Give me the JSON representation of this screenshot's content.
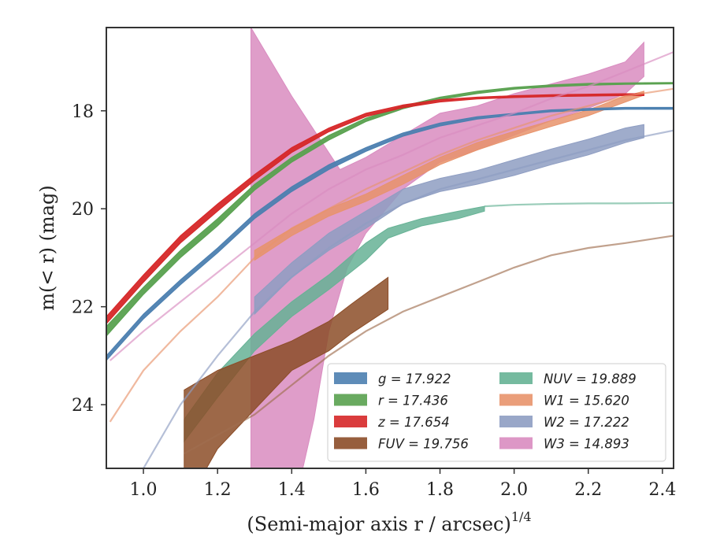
{
  "chart_data": {
    "type": "area",
    "xlabel": "(Semi-major axis r / arcsec)",
    "xlabel_exponent": "1/4",
    "ylabel": "m(< r) (mag)",
    "xlim": [
      0.9,
      2.43
    ],
    "ylim": [
      25.3,
      16.3
    ],
    "y_inverted": true,
    "grid": false,
    "legend_placement": "lower-right",
    "legend_columns": 2,
    "xticks": [
      {
        "value": 1.0,
        "label": "1.0"
      },
      {
        "value": 1.2,
        "label": "1.2"
      },
      {
        "value": 1.4,
        "label": "1.4"
      },
      {
        "value": 1.6,
        "label": "1.6"
      },
      {
        "value": 1.8,
        "label": "1.8"
      },
      {
        "value": 2.0,
        "label": "2.0"
      },
      {
        "value": 2.2,
        "label": "2.2"
      },
      {
        "value": 2.4,
        "label": "2.4"
      }
    ],
    "yticks": [
      {
        "value": 18,
        "label": "18"
      },
      {
        "value": 20,
        "label": "20"
      },
      {
        "value": 22,
        "label": "22"
      },
      {
        "value": 24,
        "label": "24"
      }
    ],
    "legend_order": [
      "g",
      "r",
      "z",
      "FUV",
      "NUV",
      "W1",
      "W2",
      "W3"
    ],
    "series": [
      {
        "name": "g",
        "legend_label": "g = 17.922",
        "color": "#4c7fb0",
        "band_lower": [
          [
            0.9,
            23.0
          ],
          [
            1.0,
            22.15
          ],
          [
            1.1,
            21.45
          ],
          [
            1.2,
            20.8
          ],
          [
            1.3,
            20.1
          ],
          [
            1.4,
            19.55
          ],
          [
            1.5,
            19.1
          ],
          [
            1.6,
            18.75
          ],
          [
            1.7,
            18.45
          ],
          [
            1.8,
            18.25
          ],
          [
            1.9,
            18.12
          ],
          [
            2.0,
            18.05
          ],
          [
            2.1,
            17.98
          ],
          [
            2.2,
            17.95
          ],
          [
            2.3,
            17.93
          ],
          [
            2.43,
            17.93
          ]
        ],
        "band_upper": [
          [
            0.9,
            23.1
          ],
          [
            1.0,
            22.25
          ],
          [
            1.1,
            21.55
          ],
          [
            1.2,
            20.9
          ],
          [
            1.3,
            20.2
          ],
          [
            1.4,
            19.65
          ],
          [
            1.5,
            19.2
          ],
          [
            1.6,
            18.83
          ],
          [
            1.7,
            18.52
          ],
          [
            1.8,
            18.31
          ],
          [
            1.9,
            18.17
          ],
          [
            2.0,
            18.09
          ],
          [
            2.1,
            18.02
          ],
          [
            2.2,
            17.99
          ],
          [
            2.3,
            17.97
          ],
          [
            2.43,
            17.97
          ]
        ]
      },
      {
        "name": "r",
        "legend_label": "r = 17.436",
        "color": "#59a14f",
        "band_lower": [
          [
            0.9,
            22.4
          ],
          [
            1.0,
            21.6
          ],
          [
            1.1,
            20.85
          ],
          [
            1.2,
            20.2
          ],
          [
            1.3,
            19.5
          ],
          [
            1.4,
            18.95
          ],
          [
            1.5,
            18.5
          ],
          [
            1.6,
            18.15
          ],
          [
            1.7,
            17.9
          ],
          [
            1.8,
            17.72
          ],
          [
            1.9,
            17.6
          ],
          [
            2.0,
            17.52
          ],
          [
            2.1,
            17.47
          ],
          [
            2.2,
            17.44
          ],
          [
            2.3,
            17.43
          ],
          [
            2.43,
            17.42
          ]
        ],
        "band_upper": [
          [
            0.9,
            22.6
          ],
          [
            1.0,
            21.75
          ],
          [
            1.1,
            21.0
          ],
          [
            1.2,
            20.35
          ],
          [
            1.3,
            19.62
          ],
          [
            1.4,
            19.05
          ],
          [
            1.5,
            18.6
          ],
          [
            1.6,
            18.22
          ],
          [
            1.7,
            17.96
          ],
          [
            1.8,
            17.77
          ],
          [
            1.9,
            17.65
          ],
          [
            2.0,
            17.56
          ],
          [
            2.1,
            17.51
          ],
          [
            2.2,
            17.48
          ],
          [
            2.3,
            17.46
          ],
          [
            2.43,
            17.45
          ]
        ]
      },
      {
        "name": "z",
        "legend_label": "z = 17.654",
        "color": "#d62728",
        "band_lower": [
          [
            0.9,
            22.2
          ],
          [
            1.0,
            21.35
          ],
          [
            1.1,
            20.55
          ],
          [
            1.2,
            19.9
          ],
          [
            1.3,
            19.3
          ],
          [
            1.4,
            18.75
          ],
          [
            1.5,
            18.35
          ],
          [
            1.6,
            18.05
          ],
          [
            1.7,
            17.88
          ],
          [
            1.8,
            17.77
          ],
          [
            1.9,
            17.72
          ],
          [
            2.0,
            17.69
          ],
          [
            2.1,
            17.67
          ],
          [
            2.2,
            17.66
          ],
          [
            2.3,
            17.65
          ],
          [
            2.35,
            17.65
          ]
        ],
        "band_upper": [
          [
            0.9,
            22.35
          ],
          [
            1.0,
            21.5
          ],
          [
            1.1,
            20.7
          ],
          [
            1.2,
            20.05
          ],
          [
            1.3,
            19.42
          ],
          [
            1.4,
            18.85
          ],
          [
            1.5,
            18.43
          ],
          [
            1.6,
            18.12
          ],
          [
            1.7,
            17.94
          ],
          [
            1.8,
            17.82
          ],
          [
            1.9,
            17.76
          ],
          [
            2.0,
            17.73
          ],
          [
            2.1,
            17.71
          ],
          [
            2.2,
            17.7
          ],
          [
            2.3,
            17.69
          ],
          [
            2.35,
            17.69
          ]
        ]
      },
      {
        "name": "FUV",
        "legend_label": "FUV = 19.756",
        "color": "#8c4d28",
        "band_lower": [
          [
            1.11,
            25.3
          ],
          [
            1.17,
            25.3
          ],
          [
            1.2,
            24.9
          ],
          [
            1.3,
            24.1
          ],
          [
            1.4,
            23.3
          ],
          [
            1.5,
            22.9
          ],
          [
            1.56,
            22.55
          ],
          [
            1.66,
            22.05
          ]
        ],
        "band_upper": [
          [
            1.11,
            23.7
          ],
          [
            1.2,
            23.3
          ],
          [
            1.3,
            23.0
          ],
          [
            1.4,
            22.7
          ],
          [
            1.5,
            22.3
          ],
          [
            1.56,
            21.95
          ],
          [
            1.66,
            21.4
          ]
        ]
      },
      {
        "name": "NUV",
        "legend_label": "NUV = 19.889",
        "color": "#66b295",
        "band_lower": [
          [
            1.11,
            24.75
          ],
          [
            1.2,
            23.85
          ],
          [
            1.3,
            22.9
          ],
          [
            1.4,
            22.2
          ],
          [
            1.5,
            21.65
          ],
          [
            1.6,
            21.05
          ],
          [
            1.66,
            20.6
          ],
          [
            1.75,
            20.35
          ],
          [
            1.85,
            20.2
          ],
          [
            1.92,
            20.05
          ]
        ],
        "band_upper": [
          [
            1.11,
            24.3
          ],
          [
            1.2,
            23.35
          ],
          [
            1.3,
            22.55
          ],
          [
            1.4,
            21.9
          ],
          [
            1.5,
            21.35
          ],
          [
            1.6,
            20.7
          ],
          [
            1.66,
            20.4
          ],
          [
            1.75,
            20.2
          ],
          [
            1.85,
            20.05
          ],
          [
            1.92,
            19.95
          ]
        ]
      },
      {
        "name": "W1",
        "legend_label": "W1 = 15.620",
        "color": "#e8936b",
        "band_lower": [
          [
            1.3,
            21.05
          ],
          [
            1.4,
            20.55
          ],
          [
            1.5,
            20.15
          ],
          [
            1.6,
            19.85
          ],
          [
            1.7,
            19.5
          ],
          [
            1.8,
            19.1
          ],
          [
            1.9,
            18.8
          ],
          [
            2.0,
            18.55
          ],
          [
            2.1,
            18.32
          ],
          [
            2.2,
            18.1
          ],
          [
            2.3,
            17.82
          ],
          [
            2.35,
            17.68
          ]
        ],
        "band_upper": [
          [
            1.3,
            20.85
          ],
          [
            1.4,
            20.4
          ],
          [
            1.5,
            20.0
          ],
          [
            1.6,
            19.7
          ],
          [
            1.7,
            19.32
          ],
          [
            1.8,
            18.95
          ],
          [
            1.9,
            18.65
          ],
          [
            2.0,
            18.42
          ],
          [
            2.1,
            18.2
          ],
          [
            2.2,
            17.98
          ],
          [
            2.3,
            17.7
          ],
          [
            2.35,
            17.6
          ]
        ]
      },
      {
        "name": "W2",
        "legend_label": "W2 = 17.222",
        "color": "#8e9dc2",
        "band_lower": [
          [
            1.3,
            22.15
          ],
          [
            1.4,
            21.4
          ],
          [
            1.5,
            20.85
          ],
          [
            1.6,
            20.4
          ],
          [
            1.7,
            19.9
          ],
          [
            1.8,
            19.65
          ],
          [
            1.9,
            19.5
          ],
          [
            2.0,
            19.32
          ],
          [
            2.1,
            19.1
          ],
          [
            2.2,
            18.9
          ],
          [
            2.3,
            18.65
          ],
          [
            2.35,
            18.55
          ]
        ],
        "band_upper": [
          [
            1.3,
            21.8
          ],
          [
            1.4,
            21.1
          ],
          [
            1.5,
            20.5
          ],
          [
            1.6,
            20.05
          ],
          [
            1.7,
            19.6
          ],
          [
            1.8,
            19.38
          ],
          [
            1.9,
            19.22
          ],
          [
            2.0,
            19.0
          ],
          [
            2.1,
            18.78
          ],
          [
            2.2,
            18.58
          ],
          [
            2.3,
            18.35
          ],
          [
            2.35,
            18.28
          ]
        ]
      },
      {
        "name": "W3",
        "legend_label": "W3 = 14.893",
        "color": "#d98cc0",
        "band_lower": [
          [
            1.29,
            25.3
          ],
          [
            1.43,
            25.3
          ],
          [
            1.46,
            24.3
          ],
          [
            1.5,
            22.5
          ],
          [
            1.55,
            21.2
          ],
          [
            1.6,
            20.5
          ],
          [
            1.7,
            19.6
          ],
          [
            1.8,
            19.05
          ],
          [
            1.9,
            18.8
          ],
          [
            2.0,
            18.5
          ],
          [
            2.1,
            18.2
          ],
          [
            2.2,
            17.95
          ],
          [
            2.3,
            17.65
          ],
          [
            2.35,
            17.3
          ]
        ],
        "band_upper": [
          [
            1.29,
            16.3
          ],
          [
            1.4,
            17.7
          ],
          [
            1.53,
            19.2
          ],
          [
            1.6,
            18.95
          ],
          [
            1.7,
            18.5
          ],
          [
            1.8,
            18.05
          ],
          [
            1.9,
            17.9
          ],
          [
            2.0,
            17.65
          ],
          [
            2.1,
            17.45
          ],
          [
            2.2,
            17.25
          ],
          [
            2.3,
            17.0
          ],
          [
            2.35,
            16.6
          ]
        ]
      }
    ],
    "model_curves": [
      {
        "name": "g",
        "color": "#4c7fb0",
        "points": [
          [
            2.35,
            17.95
          ],
          [
            2.43,
            17.95
          ]
        ]
      },
      {
        "name": "r",
        "color": "#59a14f",
        "points": [
          [
            2.35,
            17.44
          ],
          [
            2.43,
            17.44
          ]
        ]
      },
      {
        "name": "FUV",
        "color": "#a06e50",
        "points": [
          [
            1.11,
            25.0
          ],
          [
            1.3,
            24.2
          ],
          [
            1.4,
            23.6
          ],
          [
            1.5,
            23.0
          ],
          [
            1.6,
            22.5
          ],
          [
            1.7,
            22.1
          ],
          [
            1.8,
            21.8
          ],
          [
            1.9,
            21.5
          ],
          [
            2.0,
            21.2
          ],
          [
            2.1,
            20.95
          ],
          [
            2.2,
            20.8
          ],
          [
            2.3,
            20.7
          ],
          [
            2.43,
            20.55
          ]
        ]
      },
      {
        "name": "NUV",
        "color": "#66b295",
        "points": [
          [
            1.92,
            19.95
          ],
          [
            2.0,
            19.92
          ],
          [
            2.1,
            19.9
          ],
          [
            2.2,
            19.89
          ],
          [
            2.3,
            19.89
          ],
          [
            2.43,
            19.88
          ]
        ]
      },
      {
        "name": "W1",
        "color": "#e8936b",
        "points": [
          [
            0.91,
            24.35
          ],
          [
            1.0,
            23.3
          ],
          [
            1.1,
            22.5
          ],
          [
            1.2,
            21.8
          ],
          [
            1.3,
            21.0
          ],
          [
            1.4,
            20.4
          ],
          [
            1.5,
            20.0
          ],
          [
            1.6,
            19.6
          ],
          [
            1.7,
            19.25
          ],
          [
            1.8,
            18.9
          ],
          [
            1.9,
            18.6
          ],
          [
            2.0,
            18.35
          ],
          [
            2.1,
            18.1
          ],
          [
            2.2,
            17.9
          ],
          [
            2.3,
            17.7
          ],
          [
            2.43,
            17.55
          ]
        ]
      },
      {
        "name": "W2",
        "color": "#8e9dc2",
        "points": [
          [
            1.0,
            25.3
          ],
          [
            1.1,
            24.0
          ],
          [
            1.2,
            23.0
          ],
          [
            1.3,
            22.1
          ],
          [
            1.4,
            21.4
          ],
          [
            1.5,
            20.8
          ],
          [
            1.6,
            20.3
          ],
          [
            1.7,
            19.9
          ],
          [
            1.8,
            19.6
          ],
          [
            1.9,
            19.4
          ],
          [
            2.0,
            19.2
          ],
          [
            2.1,
            19.0
          ],
          [
            2.2,
            18.8
          ],
          [
            2.3,
            18.6
          ],
          [
            2.43,
            18.4
          ]
        ]
      },
      {
        "name": "W3",
        "color": "#d98cc0",
        "points": [
          [
            0.91,
            23.1
          ],
          [
            1.0,
            22.5
          ],
          [
            1.1,
            21.9
          ],
          [
            1.2,
            21.3
          ],
          [
            1.3,
            20.7
          ],
          [
            1.4,
            20.1
          ],
          [
            1.5,
            19.6
          ],
          [
            1.6,
            19.2
          ],
          [
            1.7,
            18.9
          ],
          [
            1.8,
            18.55
          ],
          [
            1.9,
            18.3
          ],
          [
            2.0,
            18.05
          ],
          [
            2.1,
            17.75
          ],
          [
            2.2,
            17.5
          ],
          [
            2.3,
            17.2
          ],
          [
            2.43,
            16.8
          ]
        ]
      }
    ]
  }
}
